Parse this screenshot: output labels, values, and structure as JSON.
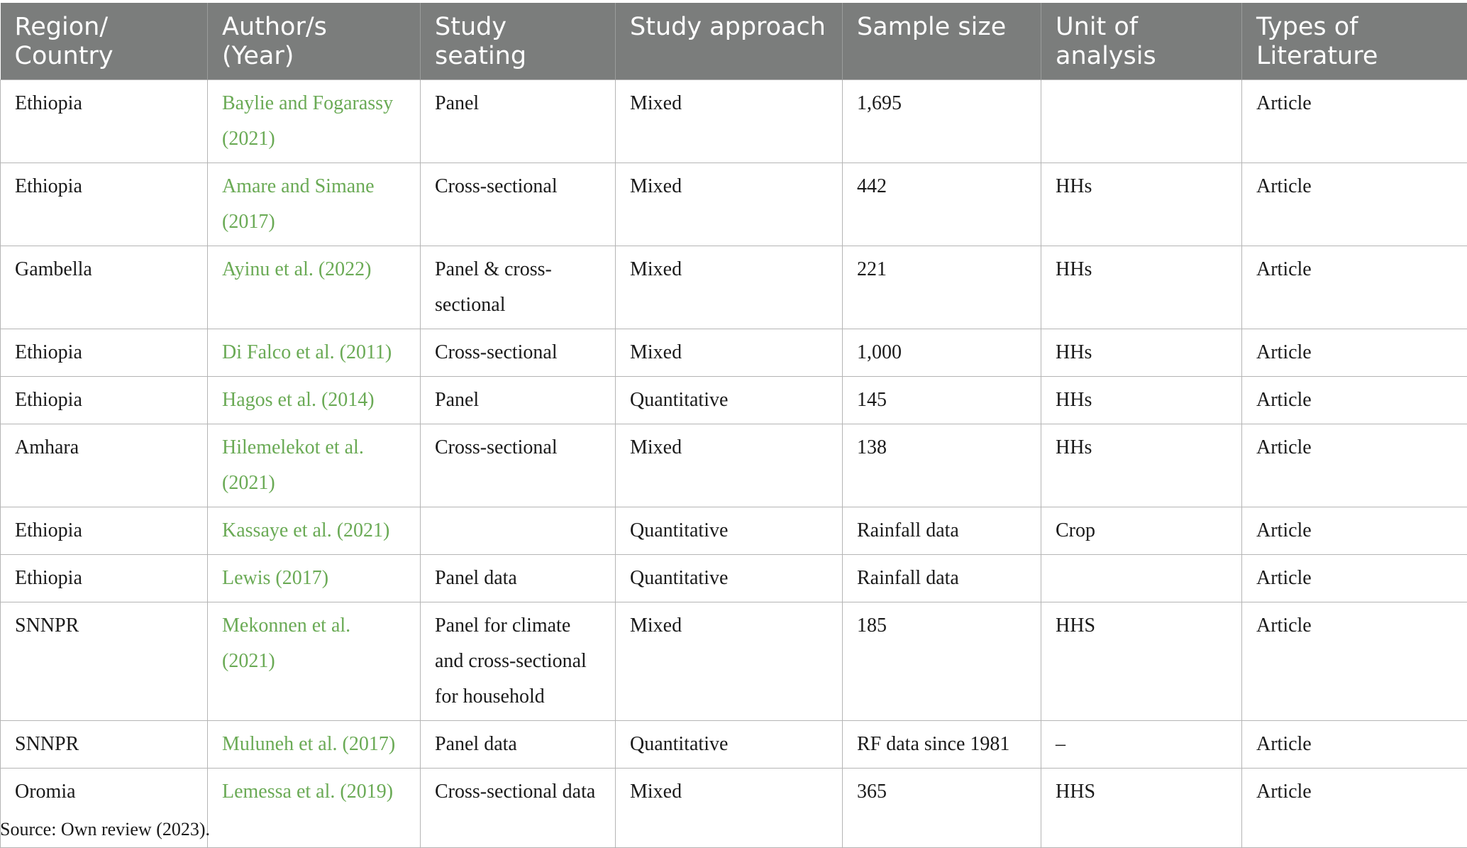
{
  "headers": [
    "Region/ Country",
    "Author/s (Year)",
    "Study seating",
    "Study approach",
    "Sample size",
    "Unit of analysis",
    "Types of Literature"
  ],
  "rows": [
    [
      "Ethiopia",
      "Baylie and Fogarassy (2021)",
      "Panel",
      "Mixed",
      "1,695",
      "",
      "Article"
    ],
    [
      "Ethiopia",
      "Amare and Simane (2017)",
      "Cross-sectional",
      "Mixed",
      "442",
      "HHs",
      "Article"
    ],
    [
      "Gambella",
      "Ayinu et al. (2022)",
      "Panel & cross-sectional",
      "Mixed",
      "221",
      "HHs",
      "Article"
    ],
    [
      "Ethiopia",
      "Di Falco et al. (2011)",
      "Cross-sectional",
      "Mixed",
      "1,000",
      "HHs",
      "Article"
    ],
    [
      "Ethiopia",
      "Hagos et al. (2014)",
      "Panel",
      "Quantitative",
      "145",
      "HHs",
      "Article"
    ],
    [
      "Amhara",
      "Hilemelekot et al. (2021)",
      "Cross-sectional",
      "Mixed",
      "138",
      "HHs",
      "Article"
    ],
    [
      "Ethiopia",
      "Kassaye et al. (2021)",
      "",
      "Quantitative",
      "Rainfall data",
      "Crop",
      "Article"
    ],
    [
      "Ethiopia",
      "Lewis (2017)",
      "Panel data",
      "Quantitative",
      "Rainfall data",
      "",
      "Article"
    ],
    [
      "SNNPR",
      "Mekonnen et al. (2021)",
      "Panel for climate and cross-sectional for household",
      "Mixed",
      "185",
      "HHS",
      "Article"
    ],
    [
      "SNNPR",
      "Muluneh et al. (2017)",
      "Panel data",
      "Quantitative",
      "RF data since 1981",
      "–",
      "Article"
    ],
    [
      "Oromia",
      "Lemessa et al. (2019)",
      "Cross-sectional data",
      "Mixed",
      "365",
      "HHS",
      "Article"
    ]
  ],
  "source_note": "Source: Own review (2023).",
  "colors": {
    "header_bg": "#7b7d7c",
    "header_text": "#ffffff",
    "author_link": "#6aaa55",
    "grid": "#b5b5b5"
  }
}
